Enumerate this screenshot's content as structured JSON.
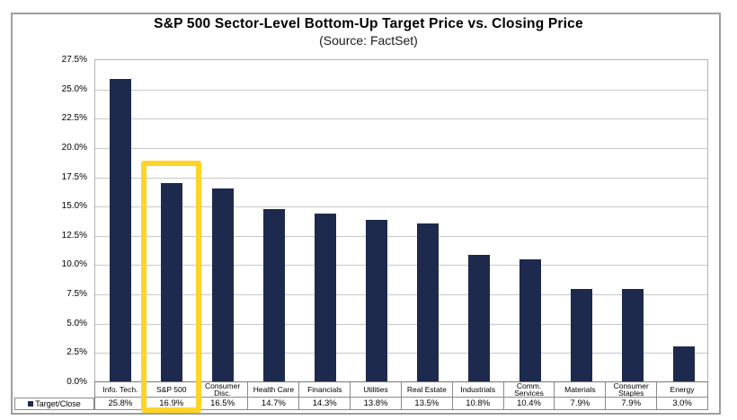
{
  "chart": {
    "title": "S&P 500 Sector-Level Bottom-Up Target Price vs. Closing Price",
    "subtitle": "(Source: FactSet)",
    "legend_label": "Target/Close",
    "highlighted_category": "S&P 500",
    "colors": {
      "bar": "#1e2a4d",
      "highlight": "#ffd428",
      "gridline": "#c9c9c9",
      "table_border": "#8a8a8a",
      "frame_border": "#9e9e9e"
    }
  },
  "chart_data": {
    "type": "bar",
    "title": "S&P 500 Sector-Level Bottom-Up Target Price vs. Closing Price",
    "subtitle": "(Source: FactSet)",
    "categories": [
      "Info. Tech.",
      "S&P 500",
      "Consumer Disc.",
      "Health Care",
      "Financials",
      "Utilities",
      "Real Estate",
      "Industrials",
      "Comm. Services",
      "Materials",
      "Consumer Staples",
      "Energy"
    ],
    "values": [
      25.8,
      16.9,
      16.5,
      14.7,
      14.3,
      13.8,
      13.5,
      10.8,
      10.4,
      7.9,
      7.9,
      3.0
    ],
    "value_labels": [
      "25.8%",
      "16.9%",
      "16.5%",
      "14.7%",
      "14.3%",
      "13.8%",
      "13.5%",
      "10.8%",
      "10.4%",
      "7.9%",
      "7.9%",
      "3.0%"
    ],
    "series": [
      {
        "name": "Target/Close",
        "values": [
          25.8,
          16.9,
          16.5,
          14.7,
          14.3,
          13.8,
          13.5,
          10.8,
          10.4,
          7.9,
          7.9,
          3.0
        ]
      }
    ],
    "xlabel": "",
    "ylabel": "",
    "ylim": [
      0,
      27.5
    ],
    "ytick_step": 2.5,
    "ytick_labels": [
      "27.5%",
      "25.0%",
      "22.5%",
      "20.0%",
      "17.5%",
      "15.0%",
      "12.5%",
      "10.0%",
      "7.5%",
      "5.0%",
      "2.5%",
      "0.0%"
    ],
    "grid": true,
    "legend_position": "bottom-left"
  }
}
